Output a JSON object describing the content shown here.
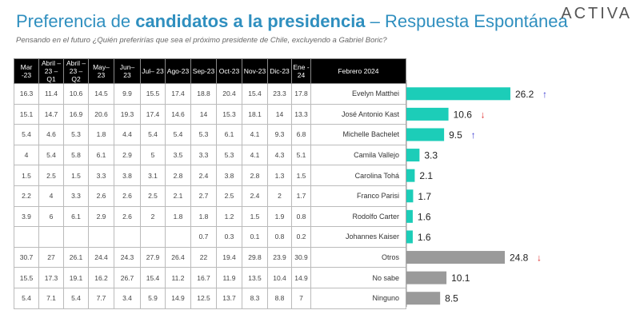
{
  "title": {
    "part1": "Preferencia de ",
    "bold": "candidatos a la presidencia",
    "part2": " – Respuesta Espontánea"
  },
  "subtitle": "Pensando en el futuro ¿Quién preferirías que sea el próximo presidente de Chile, excluyendo a Gabriel Boric?",
  "logo": "ACTIVA",
  "colors": {
    "candidate_bar": "#1ccdb8",
    "other_bar": "#9a9a9a",
    "up_arrow": "#3a3ad0",
    "down_arrow": "#e03030",
    "title": "#2f8fbf"
  },
  "chart_data": {
    "type": "bar",
    "orientation": "horizontal",
    "current_column": "Febrero 2024",
    "history_columns": [
      "Mar -23",
      "Abril – 23 – Q1",
      "Abril – 23 – Q2",
      "May– 23",
      "Jun– 23",
      "Jul– 23",
      "Ago-23",
      "Sep-23",
      "Oct-23",
      "Nov-23",
      "Dic-23",
      "Ene - 24"
    ],
    "rows": [
      {
        "name": "Evelyn Matthei",
        "history": [
          "16.3",
          "11.4",
          "10.6",
          "14.5",
          "9.9",
          "15.5",
          "17.4",
          "18.8",
          "20.4",
          "15.4",
          "23.3",
          "17.8"
        ],
        "value": 26.2,
        "label": "26.2",
        "trend": "up",
        "group": "candidate"
      },
      {
        "name": "José Antonio Kast",
        "history": [
          "15.1",
          "14.7",
          "16.9",
          "20.6",
          "19.3",
          "17.4",
          "14.6",
          "14",
          "15.3",
          "18.1",
          "14",
          "13.3"
        ],
        "value": 10.6,
        "label": "10.6",
        "trend": "down",
        "group": "candidate"
      },
      {
        "name": "Michelle Bachelet",
        "history": [
          "5.4",
          "4.6",
          "5.3",
          "1.8",
          "4.4",
          "5.4",
          "5.4",
          "5.3",
          "6.1",
          "4.1",
          "9.3",
          "6.8"
        ],
        "value": 9.5,
        "label": "9.5",
        "trend": "up",
        "group": "candidate"
      },
      {
        "name": "Camila Vallejo",
        "history": [
          "4",
          "5.4",
          "5.8",
          "6.1",
          "2.9",
          "5",
          "3.5",
          "3.3",
          "5.3",
          "4.1",
          "4.3",
          "5.1"
        ],
        "value": 3.3,
        "label": "3.3",
        "trend": "",
        "group": "candidate"
      },
      {
        "name": "Carolina Tohá",
        "history": [
          "1.5",
          "2.5",
          "1.5",
          "3.3",
          "3.8",
          "3.1",
          "2.8",
          "2.4",
          "3.8",
          "2.8",
          "1.3",
          "1.5"
        ],
        "value": 2.1,
        "label": "2.1",
        "trend": "",
        "group": "candidate"
      },
      {
        "name": "Franco Parisi",
        "history": [
          "2.2",
          "4",
          "3.3",
          "2.6",
          "2.6",
          "2.5",
          "2.1",
          "2.7",
          "2.5",
          "2.4",
          "2",
          "1.7"
        ],
        "value": 1.7,
        "label": "1.7",
        "trend": "",
        "group": "candidate"
      },
      {
        "name": "Rodolfo Carter",
        "history": [
          "3.9",
          "6",
          "6.1",
          "2.9",
          "2.6",
          "2",
          "1.8",
          "1.8",
          "1.2",
          "1.5",
          "1.9",
          "0.8"
        ],
        "value": 1.6,
        "label": "1.6",
        "trend": "",
        "group": "candidate"
      },
      {
        "name": "Johannes Kaiser",
        "history": [
          "",
          "",
          "",
          "",
          "",
          "",
          "",
          "0.7",
          "0.3",
          "0.1",
          "0.8",
          "0.2"
        ],
        "value": 1.6,
        "label": "1.6",
        "trend": "",
        "group": "candidate"
      },
      {
        "name": "Otros",
        "history": [
          "30.7",
          "27",
          "26.1",
          "24.4",
          "24.3",
          "27.9",
          "26.4",
          "22",
          "19.4",
          "29.8",
          "23.9",
          "30.9"
        ],
        "value": 24.8,
        "label": "24.8",
        "trend": "down",
        "group": "other"
      },
      {
        "name": "No sabe",
        "history": [
          "15.5",
          "17.3",
          "19.1",
          "16.2",
          "26.7",
          "15.4",
          "11.2",
          "16.7",
          "11.9",
          "13.5",
          "10.4",
          "14.9"
        ],
        "value": 10.1,
        "label": "10.1",
        "trend": "",
        "group": "other"
      },
      {
        "name": "Ninguno",
        "history": [
          "5.4",
          "7.1",
          "5.4",
          "7.7",
          "3.4",
          "5.9",
          "14.9",
          "12.5",
          "13.7",
          "8.3",
          "8.8",
          "7"
        ],
        "value": 8.5,
        "label": "8.5",
        "trend": "",
        "group": "other"
      }
    ]
  }
}
